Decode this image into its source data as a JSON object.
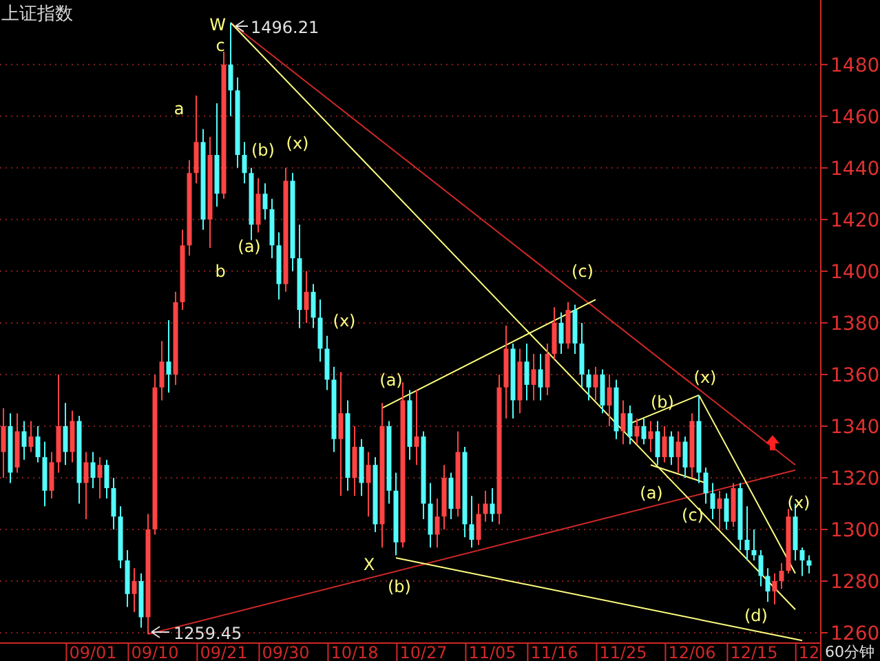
{
  "chart_data": {
    "type": "candlestick",
    "title": "上证指数",
    "categories": [
      null,
      null,
      null,
      null,
      null,
      null,
      null,
      null,
      null,
      null,
      null,
      null,
      null,
      "09/01",
      null,
      null,
      null,
      null,
      null,
      null,
      null,
      null,
      "09/10",
      null,
      null,
      null,
      null,
      null,
      null,
      null,
      null,
      null,
      "09/21",
      null,
      null,
      null,
      null,
      null,
      null,
      null,
      null,
      "09/30",
      null,
      null,
      null,
      null,
      null,
      null,
      null,
      null,
      null,
      "10/18",
      null,
      null,
      null,
      null,
      null,
      null,
      null,
      null,
      null,
      "10/27",
      null,
      null,
      null,
      null,
      null,
      null,
      null,
      null,
      null,
      "11/05",
      null,
      null,
      null,
      null,
      null,
      null,
      null,
      null,
      "11/16",
      null,
      null,
      null,
      null,
      null,
      null,
      null,
      null,
      null,
      "11/25",
      null,
      null,
      null,
      null,
      null,
      null,
      null,
      null,
      null,
      "12/06",
      null,
      null,
      null,
      null,
      null,
      null,
      null,
      null,
      "12/15",
      null,
      null,
      null,
      null,
      null,
      null,
      null,
      "12"
    ],
    "ohlc": [
      [
        1330,
        1347,
        1320,
        1340
      ],
      [
        1340,
        1345,
        1318,
        1322
      ],
      [
        1324,
        1345,
        1322,
        1338
      ],
      [
        1338,
        1342,
        1327,
        1332
      ],
      [
        1332,
        1342,
        1330,
        1336
      ],
      [
        1336,
        1340,
        1326,
        1328
      ],
      [
        1328,
        1334,
        1309,
        1315
      ],
      [
        1315,
        1330,
        1312,
        1326
      ],
      [
        1326,
        1360,
        1322,
        1340
      ],
      [
        1340,
        1349,
        1325,
        1330
      ],
      [
        1330,
        1346,
        1326,
        1342
      ],
      [
        1342,
        1344,
        1310,
        1318
      ],
      [
        1318,
        1330,
        1304,
        1326
      ],
      [
        1326,
        1330,
        1316,
        1320
      ],
      [
        1320,
        1328,
        1312,
        1325
      ],
      [
        1325,
        1327,
        1312,
        1316
      ],
      [
        1316,
        1320,
        1300,
        1305
      ],
      [
        1305,
        1309,
        1285,
        1288
      ],
      [
        1288,
        1292,
        1270,
        1275
      ],
      [
        1275,
        1285,
        1268,
        1280
      ],
      [
        1280,
        1283,
        1262,
        1266
      ],
      [
        1266,
        1306,
        1259.45,
        1300
      ],
      [
        1300,
        1360,
        1298,
        1355
      ],
      [
        1355,
        1373,
        1350,
        1365
      ],
      [
        1365,
        1381,
        1353,
        1360
      ],
      [
        1360,
        1392,
        1356,
        1388
      ],
      [
        1388,
        1416,
        1385,
        1410
      ],
      [
        1410,
        1443,
        1406,
        1438
      ],
      [
        1438,
        1468,
        1434,
        1450
      ],
      [
        1450,
        1455,
        1416,
        1420
      ],
      [
        1420,
        1452,
        1409,
        1445
      ],
      [
        1445,
        1465,
        1425,
        1430
      ],
      [
        1430,
        1485,
        1428,
        1480
      ],
      [
        1480,
        1496.21,
        1460,
        1470
      ],
      [
        1470,
        1475,
        1440,
        1445
      ],
      [
        1445,
        1450,
        1434,
        1438
      ],
      [
        1438,
        1440,
        1412,
        1418
      ],
      [
        1418,
        1436,
        1415,
        1430
      ],
      [
        1430,
        1434,
        1420,
        1424
      ],
      [
        1424,
        1428,
        1405,
        1410
      ],
      [
        1410,
        1415,
        1389,
        1395
      ],
      [
        1395,
        1440,
        1392,
        1435
      ],
      [
        1435,
        1438,
        1400,
        1405
      ],
      [
        1405,
        1418,
        1378,
        1385
      ],
      [
        1385,
        1400,
        1380,
        1392
      ],
      [
        1392,
        1395,
        1378,
        1382
      ],
      [
        1382,
        1389,
        1365,
        1370
      ],
      [
        1370,
        1375,
        1354,
        1358
      ],
      [
        1358,
        1363,
        1330,
        1335
      ],
      [
        1335,
        1361,
        1313,
        1345
      ],
      [
        1345,
        1350,
        1315,
        1320
      ],
      [
        1320,
        1340,
        1313,
        1332
      ],
      [
        1332,
        1335,
        1313,
        1318
      ],
      [
        1318,
        1330,
        1305,
        1325
      ],
      [
        1325,
        1328,
        1299,
        1302
      ],
      [
        1302,
        1349,
        1293,
        1340
      ],
      [
        1340,
        1342,
        1310,
        1315
      ],
      [
        1315,
        1322,
        1290,
        1295
      ],
      [
        1295,
        1357,
        1293,
        1350
      ],
      [
        1350,
        1354,
        1327,
        1332
      ],
      [
        1332,
        1354,
        1325,
        1336
      ],
      [
        1336,
        1338,
        1304,
        1310
      ],
      [
        1310,
        1318,
        1293,
        1298
      ],
      [
        1298,
        1312,
        1293,
        1305
      ],
      [
        1305,
        1325,
        1300,
        1320
      ],
      [
        1320,
        1322,
        1304,
        1308
      ],
      [
        1308,
        1338,
        1305,
        1330
      ],
      [
        1330,
        1332,
        1297,
        1302
      ],
      [
        1302,
        1313,
        1293,
        1296
      ],
      [
        1296,
        1310,
        1294,
        1306
      ],
      [
        1306,
        1315,
        1303,
        1310
      ],
      [
        1310,
        1316,
        1303,
        1306
      ],
      [
        1306,
        1360,
        1302,
        1355
      ],
      [
        1355,
        1379,
        1343,
        1370
      ],
      [
        1370,
        1372,
        1343,
        1350
      ],
      [
        1350,
        1370,
        1345,
        1365
      ],
      [
        1365,
        1372,
        1350,
        1356
      ],
      [
        1356,
        1368,
        1350,
        1362
      ],
      [
        1362,
        1368,
        1350,
        1355
      ],
      [
        1355,
        1372,
        1352,
        1368
      ],
      [
        1368,
        1386,
        1366,
        1380
      ],
      [
        1380,
        1384,
        1368,
        1372
      ],
      [
        1372,
        1388,
        1370,
        1385
      ],
      [
        1385,
        1387,
        1368,
        1372
      ],
      [
        1372,
        1380,
        1355,
        1360
      ],
      [
        1360,
        1362,
        1350,
        1355
      ],
      [
        1355,
        1363,
        1350,
        1360
      ],
      [
        1360,
        1362,
        1345,
        1348
      ],
      [
        1348,
        1360,
        1340,
        1355
      ],
      [
        1355,
        1358,
        1335,
        1338
      ],
      [
        1338,
        1350,
        1333,
        1345
      ],
      [
        1345,
        1348,
        1333,
        1336
      ],
      [
        1336,
        1343,
        1333,
        1340
      ],
      [
        1340,
        1343,
        1333,
        1335
      ],
      [
        1335,
        1342,
        1330,
        1338
      ],
      [
        1338,
        1342,
        1325,
        1328
      ],
      [
        1328,
        1340,
        1326,
        1336
      ],
      [
        1336,
        1338,
        1325,
        1328
      ],
      [
        1328,
        1338,
        1322,
        1334
      ],
      [
        1334,
        1336,
        1320,
        1324
      ],
      [
        1324,
        1345,
        1320,
        1342
      ],
      [
        1342,
        1352,
        1318,
        1322
      ],
      [
        1322,
        1324,
        1310,
        1314
      ],
      [
        1314,
        1318,
        1304,
        1308
      ],
      [
        1308,
        1315,
        1300,
        1312
      ],
      [
        1312,
        1314,
        1300,
        1303
      ],
      [
        1303,
        1318,
        1301,
        1316
      ],
      [
        1316,
        1318,
        1292,
        1296
      ],
      [
        1296,
        1309,
        1288,
        1292
      ],
      [
        1292,
        1300,
        1288,
        1290
      ],
      [
        1290,
        1292,
        1278,
        1282
      ],
      [
        1282,
        1285,
        1272,
        1276
      ],
      [
        1276,
        1283,
        1271,
        1280
      ],
      [
        1280,
        1287,
        1277,
        1284
      ],
      [
        1284,
        1308,
        1283,
        1305
      ],
      [
        1305,
        1310,
        1288,
        1292
      ],
      [
        1292,
        1293,
        1282,
        1288
      ],
      [
        1288,
        1290,
        1283,
        1286
      ]
    ],
    "colors": [
      "#ff4444",
      "#54fcfc",
      "#ff4444",
      "#54fcfc",
      "#ff4444",
      "#54fcfc",
      "#54fcfc",
      "#ff4444",
      "#ff4444",
      "#54fcfc",
      "#ff4444",
      "#54fcfc",
      "#ff4444",
      "#54fcfc",
      "#ff4444",
      "#54fcfc",
      "#54fcfc",
      "#54fcfc",
      "#54fcfc",
      "#ff4444",
      "#54fcfc",
      "#ff4444",
      "#ff4444",
      "#ff4444",
      "#54fcfc",
      "#ff4444",
      "#ff4444",
      "#ff4444",
      "#ff4444",
      "#54fcfc",
      "#ff4444",
      "#54fcfc",
      "#ff4444",
      "#54fcfc",
      "#54fcfc",
      "#54fcfc",
      "#54fcfc",
      "#ff4444",
      "#54fcfc",
      "#54fcfc",
      "#54fcfc",
      "#ff4444",
      "#54fcfc",
      "#54fcfc",
      "#ff4444",
      "#54fcfc",
      "#54fcfc",
      "#54fcfc",
      "#54fcfc",
      "#ff4444",
      "#54fcfc",
      "#ff4444",
      "#54fcfc",
      "#ff4444",
      "#54fcfc",
      "#ff4444",
      "#54fcfc",
      "#54fcfc",
      "#ff4444",
      "#54fcfc",
      "#ff4444",
      "#54fcfc",
      "#54fcfc",
      "#ff4444",
      "#ff4444",
      "#54fcfc",
      "#ff4444",
      "#54fcfc",
      "#54fcfc",
      "#ff4444",
      "#ff4444",
      "#54fcfc",
      "#ff4444",
      "#ff4444",
      "#54fcfc",
      "#ff4444",
      "#54fcfc",
      "#ff4444",
      "#54fcfc",
      "#ff4444",
      "#ff4444",
      "#54fcfc",
      "#ff4444",
      "#54fcfc",
      "#54fcfc",
      "#54fcfc",
      "#ff4444",
      "#54fcfc",
      "#ff4444",
      "#54fcfc",
      "#ff4444",
      "#54fcfc",
      "#ff4444",
      "#54fcfc",
      "#ff4444",
      "#54fcfc",
      "#ff4444",
      "#54fcfc",
      "#ff4444",
      "#54fcfc",
      "#ff4444",
      "#54fcfc",
      "#54fcfc",
      "#54fcfc",
      "#ff4444",
      "#54fcfc",
      "#ff4444",
      "#54fcfc",
      "#54fcfc",
      "#54fcfc",
      "#54fcfc",
      "#54fcfc",
      "#ff4444",
      "#ff4444",
      "#ff4444",
      "#54fcfc",
      "#54fcfc",
      "#54fcfc"
    ],
    "series": [
      {
        "type": "line",
        "color": "#d02828",
        "values": [
          null,
          null,
          null,
          null,
          null,
          null,
          null,
          null,
          null,
          null,
          null,
          null,
          null,
          null,
          null,
          null,
          null,
          null,
          null,
          null,
          null,
          null,
          null,
          null,
          null,
          null,
          null,
          null,
          null,
          null,
          null,
          null,
          null,
          1496.21,
          null,
          null,
          null,
          null,
          null,
          null,
          null,
          null,
          null,
          null,
          null,
          null,
          null,
          null,
          null,
          null,
          null,
          null,
          null,
          null,
          null,
          null,
          null,
          null,
          null,
          null,
          null,
          null,
          null,
          null,
          null,
          null,
          null,
          null,
          null,
          null,
          null,
          null,
          null,
          null,
          null,
          null,
          null,
          null,
          null,
          null,
          null,
          null,
          null,
          null,
          null,
          null,
          null,
          null,
          null,
          null,
          null,
          null,
          null,
          null,
          null,
          null,
          null,
          null,
          null,
          null,
          null,
          null,
          null,
          null,
          null,
          null,
          null,
          null,
          null,
          null,
          null,
          null,
          null,
          null,
          null,
          1325,
          null,
          null
        ]
      },
      {
        "type": "line",
        "color": "#d02828",
        "values": [
          null,
          null,
          null,
          null,
          null,
          null,
          null,
          null,
          null,
          null,
          null,
          null,
          null,
          null,
          null,
          null,
          null,
          null,
          null,
          null,
          null,
          1259.45,
          null,
          null,
          null,
          null,
          null,
          null,
          null,
          null,
          null,
          null,
          null,
          null,
          null,
          null,
          null,
          null,
          null,
          null,
          null,
          null,
          null,
          null,
          null,
          null,
          null,
          null,
          null,
          null,
          null,
          null,
          null,
          null,
          null,
          null,
          null,
          null,
          null,
          null,
          null,
          null,
          null,
          null,
          null,
          null,
          null,
          null,
          null,
          null,
          null,
          null,
          null,
          null,
          null,
          null,
          null,
          null,
          null,
          null,
          null,
          null,
          null,
          null,
          null,
          null,
          null,
          null,
          null,
          null,
          null,
          null,
          null,
          null,
          null,
          null,
          null,
          null,
          null,
          null,
          null,
          null,
          null,
          null,
          null,
          null,
          null,
          null,
          null,
          null,
          null,
          null,
          null,
          null,
          null,
          1323,
          null,
          null
        ]
      },
      {
        "type": "line",
        "color": "#ffff80",
        "values": [
          null,
          null,
          null,
          null,
          null,
          null,
          null,
          null,
          null,
          null,
          null,
          null,
          null,
          null,
          null,
          null,
          null,
          null,
          null,
          null,
          null,
          null,
          null,
          null,
          null,
          null,
          null,
          null,
          null,
          null,
          null,
          null,
          null,
          1496.21,
          null,
          null,
          null,
          null,
          null,
          null,
          null,
          null,
          null,
          null,
          null,
          null,
          null,
          null,
          null,
          null,
          null,
          null,
          null,
          null,
          null,
          null,
          null,
          null,
          null,
          null,
          null,
          null,
          null,
          null,
          null,
          null,
          null,
          null,
          null,
          null,
          null,
          null,
          null,
          null,
          null,
          null,
          null,
          null,
          null,
          null,
          null,
          null,
          null,
          null,
          null,
          null,
          null,
          null,
          null,
          null,
          null,
          null,
          null,
          null,
          null,
          null,
          null,
          null,
          null,
          null,
          null,
          null,
          null,
          null,
          null,
          null,
          null,
          null,
          null,
          null,
          null,
          null,
          null,
          null,
          null,
          1269,
          null,
          null
        ]
      },
      {
        "type": "line",
        "color": "#ffff80",
        "values": [
          null,
          null,
          null,
          null,
          null,
          null,
          null,
          null,
          null,
          null,
          null,
          null,
          null,
          null,
          null,
          null,
          null,
          null,
          null,
          null,
          null,
          null,
          null,
          null,
          null,
          null,
          null,
          null,
          null,
          null,
          null,
          null,
          null,
          null,
          null,
          null,
          null,
          null,
          null,
          null,
          null,
          null,
          null,
          null,
          null,
          null,
          null,
          null,
          null,
          null,
          null,
          null,
          null,
          null,
          null,
          null,
          null,
          1289,
          null,
          null,
          null,
          null,
          null,
          null,
          null,
          null,
          null,
          null,
          null,
          null,
          null,
          null,
          null,
          null,
          null,
          null,
          null,
          null,
          null,
          null,
          null,
          null,
          null,
          null,
          null,
          null,
          null,
          null,
          null,
          null,
          null,
          null,
          null,
          null,
          null,
          null,
          null,
          null,
          null,
          null,
          null,
          null,
          null,
          null,
          null,
          null,
          null,
          null,
          null,
          null,
          null,
          null,
          null,
          null,
          null,
          null,
          1257,
          null
        ]
      },
      {
        "type": "line",
        "color": "#ffff80",
        "values": [
          null,
          null,
          null,
          null,
          null,
          null,
          null,
          null,
          null,
          null,
          null,
          null,
          null,
          null,
          null,
          null,
          null,
          null,
          null,
          null,
          null,
          null,
          null,
          null,
          null,
          null,
          null,
          null,
          null,
          null,
          null,
          null,
          null,
          null,
          null,
          null,
          null,
          null,
          null,
          null,
          null,
          null,
          null,
          null,
          null,
          null,
          null,
          null,
          null,
          null,
          null,
          null,
          null,
          null,
          null,
          1347,
          null,
          null,
          null,
          null,
          null,
          null,
          null,
          null,
          null,
          null,
          null,
          null,
          null,
          null,
          null,
          null,
          null,
          null,
          null,
          null,
          null,
          null,
          null,
          null,
          null,
          null,
          null,
          null,
          null,
          null,
          1389,
          null,
          null,
          null,
          null,
          null,
          null,
          null,
          null,
          null,
          null,
          null,
          null,
          null,
          null,
          null,
          null,
          null,
          null,
          null,
          null,
          null,
          null,
          null,
          null,
          null,
          null,
          null,
          null,
          null,
          null,
          null
        ]
      },
      {
        "type": "line",
        "color": "#ffff80",
        "values": [
          null,
          null,
          null,
          null,
          null,
          null,
          null,
          null,
          null,
          null,
          null,
          null,
          null,
          null,
          null,
          null,
          null,
          null,
          null,
          null,
          null,
          null,
          null,
          null,
          null,
          null,
          null,
          null,
          null,
          null,
          null,
          null,
          null,
          null,
          null,
          null,
          null,
          null,
          null,
          null,
          null,
          null,
          null,
          null,
          null,
          null,
          null,
          null,
          null,
          null,
          null,
          null,
          null,
          null,
          null,
          null,
          null,
          null,
          null,
          null,
          null,
          null,
          null,
          null,
          null,
          null,
          null,
          null,
          null,
          null,
          null,
          null,
          null,
          null,
          null,
          null,
          null,
          null,
          null,
          null,
          null,
          null,
          null,
          null,
          null,
          null,
          null,
          null,
          null,
          null,
          null,
          1341,
          null,
          null,
          null,
          null,
          null,
          null,
          null,
          null,
          null,
          1352,
          null,
          null,
          null,
          null,
          null,
          null,
          null,
          null,
          null,
          null,
          null,
          null,
          null,
          null,
          null,
          null
        ]
      },
      {
        "type": "line",
        "color": "#ffff80",
        "values": [
          null,
          null,
          null,
          null,
          null,
          null,
          null,
          null,
          null,
          null,
          null,
          null,
          null,
          null,
          null,
          null,
          null,
          null,
          null,
          null,
          null,
          null,
          null,
          null,
          null,
          null,
          null,
          null,
          null,
          null,
          null,
          null,
          null,
          null,
          null,
          null,
          null,
          null,
          null,
          null,
          null,
          null,
          null,
          null,
          null,
          null,
          null,
          null,
          null,
          null,
          null,
          null,
          null,
          null,
          null,
          null,
          null,
          null,
          null,
          null,
          null,
          null,
          null,
          null,
          null,
          null,
          null,
          null,
          null,
          null,
          null,
          null,
          null,
          null,
          null,
          null,
          null,
          null,
          null,
          null,
          null,
          null,
          null,
          null,
          null,
          null,
          null,
          null,
          null,
          null,
          null,
          null,
          null,
          null,
          1325,
          null,
          null,
          null,
          null,
          null,
          null,
          null,
          1318,
          null,
          null,
          null,
          null,
          null,
          null,
          null,
          null,
          null,
          null,
          null,
          null,
          null,
          null,
          null
        ]
      },
      {
        "type": "line",
        "color": "#ffff80",
        "values": [
          null,
          null,
          null,
          null,
          null,
          null,
          null,
          null,
          null,
          null,
          null,
          null,
          null,
          null,
          null,
          null,
          null,
          null,
          null,
          null,
          null,
          null,
          null,
          null,
          null,
          null,
          null,
          null,
          null,
          null,
          null,
          null,
          null,
          null,
          null,
          null,
          null,
          null,
          null,
          null,
          null,
          null,
          null,
          null,
          null,
          null,
          null,
          null,
          null,
          null,
          null,
          null,
          null,
          null,
          null,
          null,
          null,
          null,
          null,
          null,
          null,
          null,
          null,
          null,
          null,
          null,
          null,
          null,
          null,
          null,
          null,
          null,
          null,
          null,
          null,
          null,
          null,
          null,
          null,
          null,
          null,
          null,
          null,
          null,
          null,
          null,
          null,
          null,
          null,
          null,
          null,
          null,
          null,
          null,
          null,
          null,
          null,
          null,
          null,
          null,
          null,
          1352,
          null,
          null,
          null,
          null,
          null,
          null,
          null,
          null,
          null,
          null,
          null,
          null,
          null,
          1283,
          null,
          null
        ]
      }
    ],
    "ylim": [
      1256,
      1505
    ],
    "yticks": [
      1260,
      1280,
      1300,
      1320,
      1340,
      1360,
      1380,
      1400,
      1420,
      1440,
      1460,
      1480
    ],
    "grid": "y",
    "annotations": [
      "W",
      "c",
      "a",
      "b",
      "(b)",
      "(x)",
      "(a)",
      "(x)",
      "(a)",
      "X",
      "(b)",
      "(c)",
      "(x)",
      "(b)",
      "(a)",
      "(c)",
      "(x)",
      "(d)",
      "1496.21",
      "1259.45",
      "60分钟"
    ]
  }
}
